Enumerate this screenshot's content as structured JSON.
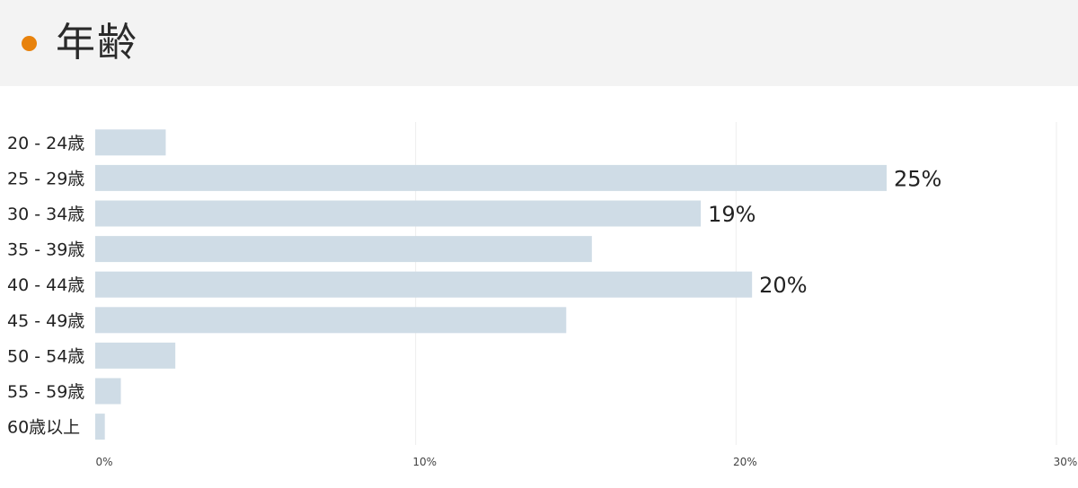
{
  "header": {
    "title": "年齢",
    "dot_color": "#e8820c"
  },
  "chart_data": {
    "type": "bar",
    "orientation": "horizontal",
    "title": "年齢",
    "categories": [
      "20 - 24歳",
      "25 - 29歳",
      "30 - 34歳",
      "35 - 39歳",
      "40 - 44歳",
      "45 - 49歳",
      "50 - 54歳",
      "55 - 59歳",
      "60歳以上"
    ],
    "values": [
      2.2,
      24.7,
      18.9,
      15.5,
      20.5,
      14.7,
      2.5,
      0.8,
      0.3
    ],
    "data_labels": [
      "",
      "25%",
      "19%",
      "",
      "20%",
      "",
      "",
      "",
      ""
    ],
    "xlim": [
      0,
      30
    ],
    "xticks": [
      "0%",
      "10%",
      "20%",
      "30%"
    ],
    "xtick_values": [
      0,
      10,
      20,
      30
    ],
    "grid": true,
    "bar_color": "#cfdce6",
    "grid_color": "#eeeeee"
  }
}
